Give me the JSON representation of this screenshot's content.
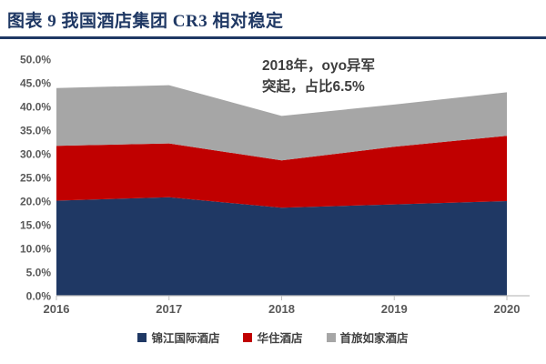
{
  "header": {
    "title": "图表 9  我国酒店集团 CR3 相对稳定",
    "accent_color": "#1F3864"
  },
  "annotation": {
    "line1": "2018年，oyo异军",
    "line2": "突起，占比6.5%"
  },
  "chart_data": {
    "type": "area",
    "stacked": true,
    "x": [
      2016,
      2017,
      2018,
      2019,
      2020
    ],
    "xticks": [
      "2016",
      "2017",
      "2018",
      "2019",
      "2020"
    ],
    "yticks": [
      "50.0%",
      "45.0%",
      "40.0%",
      "35.0%",
      "30.0%",
      "25.0%",
      "20.0%",
      "15.0%",
      "10.0%",
      "5.0%",
      "0.0%"
    ],
    "ylim": [
      0,
      50
    ],
    "ytick_step": 5,
    "grid": false,
    "legend_position": "bottom",
    "axis_color": "#BFBFBF",
    "tick_text_color": "#595959",
    "series": [
      {
        "name": "锦江国际酒店",
        "color": "#1F3864",
        "values": [
          20.1,
          20.8,
          18.6,
          19.3,
          20.0
        ]
      },
      {
        "name": "华住酒店",
        "color": "#C00000",
        "values": [
          11.6,
          11.4,
          10.0,
          12.2,
          13.8
        ]
      },
      {
        "name": "首旅如家酒店",
        "color": "#A6A6A6",
        "values": [
          12.2,
          12.3,
          9.4,
          8.9,
          9.2
        ]
      }
    ],
    "cumulative_totals": [
      43.9,
      44.5,
      38.0,
      40.4,
      43.0
    ]
  }
}
